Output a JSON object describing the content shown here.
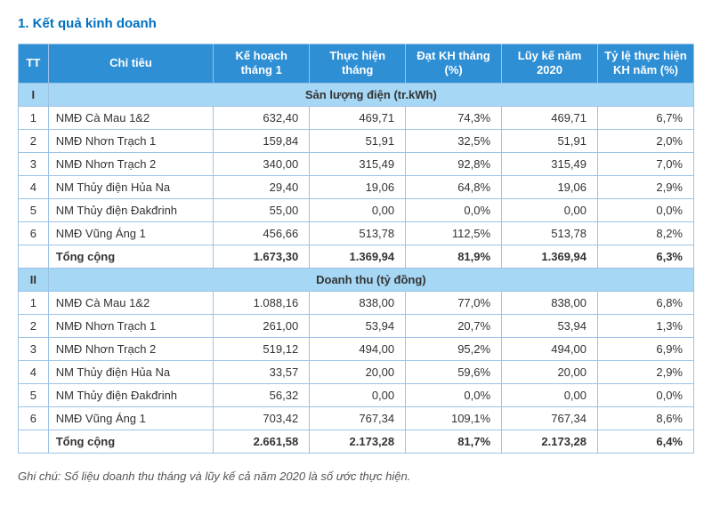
{
  "title": "1.  Kết quả kinh doanh",
  "footnote": "Ghi chú: Số liệu doanh thu tháng và lũy kế cả năm 2020 là số ước thực hiện.",
  "table": {
    "columns": [
      {
        "key": "tt",
        "label": "TT",
        "class": "col-tt"
      },
      {
        "key": "chitieu",
        "label": "Chỉ tiêu",
        "class": "col-ct"
      },
      {
        "key": "kehoach",
        "label": "Kế hoạch tháng 1",
        "class": "col-num"
      },
      {
        "key": "thuchien",
        "label": "Thực hiện tháng",
        "class": "col-num"
      },
      {
        "key": "datkh",
        "label": "Đạt KH tháng (%)",
        "class": "col-num"
      },
      {
        "key": "luyke",
        "label": "Lũy kế năm 2020",
        "class": "col-num"
      },
      {
        "key": "tyle",
        "label": "Tỷ lệ thực hiện KH năm (%)",
        "class": "col-num"
      }
    ],
    "colors": {
      "header_bg": "#2e8fd5",
      "header_text": "#ffffff",
      "section_bg": "#a6d7f5",
      "border": "#9cc2e5",
      "title_color": "#0070c0",
      "body_text": "#333333",
      "footnote_color": "#555555",
      "background": "#ffffff"
    },
    "sections": [
      {
        "num": "I",
        "title": "Sản lượng điện (tr.kWh)",
        "rows": [
          {
            "tt": "1",
            "label": "NMĐ Cà Mau 1&2",
            "kehoach": "632,40",
            "thuchien": "469,71",
            "datkh": "74,3%",
            "luyke": "469,71",
            "tyle": "6,7%"
          },
          {
            "tt": "2",
            "label": "NMĐ Nhơn Trạch 1",
            "kehoach": "159,84",
            "thuchien": "51,91",
            "datkh": "32,5%",
            "luyke": "51,91",
            "tyle": "2,0%"
          },
          {
            "tt": "3",
            "label": "NMĐ Nhơn Trạch 2",
            "kehoach": "340,00",
            "thuchien": "315,49",
            "datkh": "92,8%",
            "luyke": "315,49",
            "tyle": "7,0%"
          },
          {
            "tt": "4",
            "label": "NM Thủy điện Hủa Na",
            "kehoach": "29,40",
            "thuchien": "19,06",
            "datkh": "64,8%",
            "luyke": "19,06",
            "tyle": "2,9%"
          },
          {
            "tt": "5",
            "label": "NM Thủy điện Đakđrinh",
            "kehoach": "55,00",
            "thuchien": "0,00",
            "datkh": "0,0%",
            "luyke": "0,00",
            "tyle": "0,0%"
          },
          {
            "tt": "6",
            "label": "NMĐ Vũng Áng 1",
            "kehoach": "456,66",
            "thuchien": "513,78",
            "datkh": "112,5%",
            "luyke": "513,78",
            "tyle": "8,2%"
          }
        ],
        "total": {
          "label": "Tổng cộng",
          "kehoach": "1.673,30",
          "thuchien": "1.369,94",
          "datkh": "81,9%",
          "luyke": "1.369,94",
          "tyle": "6,3%"
        }
      },
      {
        "num": "II",
        "title": "Doanh thu (tỷ đồng)",
        "rows": [
          {
            "tt": "1",
            "label": "NMĐ Cà Mau 1&2",
            "kehoach": "1.088,16",
            "thuchien": "838,00",
            "datkh": "77,0%",
            "luyke": "838,00",
            "tyle": "6,8%"
          },
          {
            "tt": "2",
            "label": "NMĐ Nhơn Trạch 1",
            "kehoach": "261,00",
            "thuchien": "53,94",
            "datkh": "20,7%",
            "luyke": "53,94",
            "tyle": "1,3%"
          },
          {
            "tt": "3",
            "label": "NMĐ Nhơn Trạch 2",
            "kehoach": "519,12",
            "thuchien": "494,00",
            "datkh": "95,2%",
            "luyke": "494,00",
            "tyle": "6,9%"
          },
          {
            "tt": "4",
            "label": "NM Thủy điện Hủa Na",
            "kehoach": "33,57",
            "thuchien": "20,00",
            "datkh": "59,6%",
            "luyke": "20,00",
            "tyle": "2,9%"
          },
          {
            "tt": "5",
            "label": "NM Thủy điện Đakđrinh",
            "kehoach": "56,32",
            "thuchien": "0,00",
            "datkh": "0,0%",
            "luyke": "0,00",
            "tyle": "0,0%"
          },
          {
            "tt": "6",
            "label": "NMĐ Vũng Áng 1",
            "kehoach": "703,42",
            "thuchien": "767,34",
            "datkh": "109,1%",
            "luyke": "767,34",
            "tyle": "8,6%"
          }
        ],
        "total": {
          "label": "Tổng cộng",
          "kehoach": "2.661,58",
          "thuchien": "2.173,28",
          "datkh": "81,7%",
          "luyke": "2.173,28",
          "tyle": "6,4%"
        }
      }
    ]
  }
}
